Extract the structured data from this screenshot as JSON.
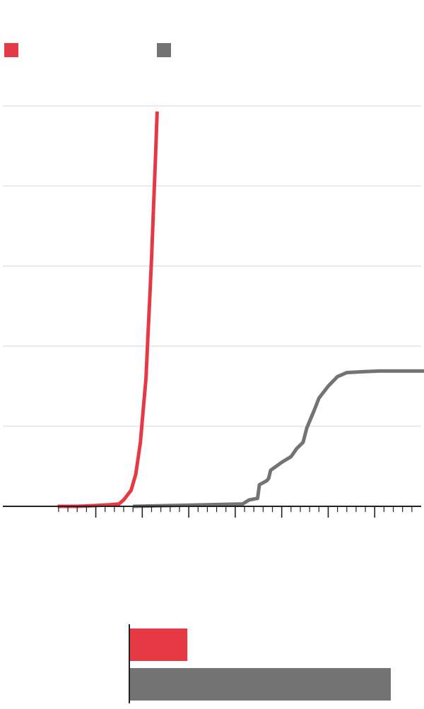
{
  "colors": {
    "series_a": "#e63946",
    "series_b": "#737373",
    "grid": "#e3e3e3",
    "axis": "#222222"
  },
  "legend": [
    {
      "series": "a",
      "color": "#e63946"
    },
    {
      "series": "b",
      "color": "#737373"
    }
  ],
  "chart_data": [
    {
      "type": "line",
      "title": "",
      "xlabel": "",
      "ylabel": "",
      "xlim": [
        0,
        45
      ],
      "ylim": [
        0,
        5
      ],
      "grid": true,
      "legend_position": "top-left",
      "series": [
        {
          "color": "#e63946",
          "x": [
            5.9,
            8.0,
            10.0,
            11.5,
            12.5,
            13.0,
            13.8,
            14.3,
            14.8,
            15.1,
            15.4,
            15.6,
            15.8,
            16.0,
            16.2,
            16.4,
            16.6
          ],
          "y": [
            0.0,
            0.0,
            0.01,
            0.02,
            0.03,
            0.08,
            0.2,
            0.4,
            0.8,
            1.2,
            1.6,
            2.1,
            2.6,
            3.1,
            3.7,
            4.3,
            4.93
          ]
        },
        {
          "color": "#737373",
          "x": [
            14.0,
            18.0,
            22.0,
            25.8,
            26.5,
            27.4,
            27.6,
            28.4,
            28.6,
            28.8,
            30.0,
            31.0,
            31.6,
            32.3,
            32.7,
            33.5,
            34.0,
            35.0,
            36.0,
            37.0,
            38.5,
            40.5,
            43.0,
            45.5
          ],
          "y": [
            0.0,
            0.01,
            0.02,
            0.03,
            0.08,
            0.1,
            0.27,
            0.32,
            0.35,
            0.45,
            0.55,
            0.62,
            0.72,
            0.8,
            0.98,
            1.2,
            1.35,
            1.5,
            1.62,
            1.67,
            1.68,
            1.69,
            1.69,
            1.69
          ]
        }
      ]
    },
    {
      "type": "bar",
      "orientation": "horizontal",
      "title": "",
      "xlim": [
        0,
        100
      ],
      "categories": [
        "",
        ""
      ],
      "values": [
        22,
        100
      ],
      "colors": [
        "#e63946",
        "#737373"
      ]
    }
  ]
}
